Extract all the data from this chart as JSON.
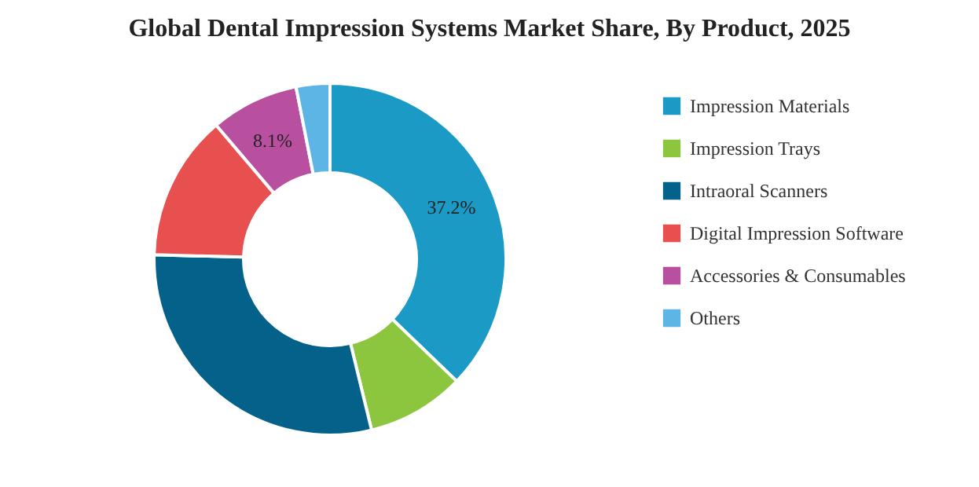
{
  "chart_data": {
    "type": "donut",
    "title": "Global Dental Impression Systems Market Share, By Product, 2025",
    "categories": [
      "Impression Materials",
      "Impression Trays",
      "Intraoral Scanners",
      "Digital Impression Software",
      "Accessories & Consumables",
      "Others"
    ],
    "values": [
      37.2,
      9.0,
      29.2,
      13.4,
      8.1,
      3.1
    ],
    "colors": [
      "#1b9ac6",
      "#8cc63f",
      "#03618a",
      "#e8504f",
      "#b9509f",
      "#5db5e6"
    ],
    "value_labels": [
      "37.2%",
      null,
      null,
      null,
      "8.1%",
      null
    ],
    "legend": "right"
  }
}
